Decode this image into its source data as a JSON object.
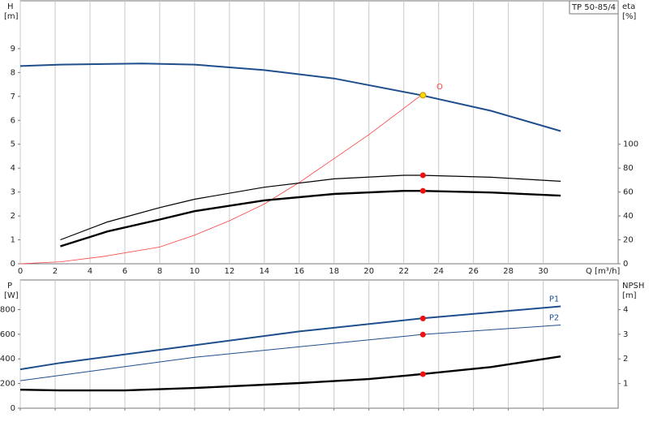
{
  "chart_data": [
    {
      "type": "line",
      "title": "TP 50-85/4",
      "ylabel": "H",
      "yunit": "[m]",
      "y2label": "eta",
      "y2unit": "[%]",
      "xlabel": "Q [m³/h]",
      "xlim": [
        0,
        34.3
      ],
      "xticks": [
        0,
        2,
        4,
        6,
        8,
        10,
        12,
        14,
        16,
        18,
        20,
        22,
        24,
        26,
        28,
        30
      ],
      "ylim": [
        0,
        11
      ],
      "yticks": [
        0,
        1,
        2,
        3,
        4,
        5,
        6,
        7,
        8,
        9
      ],
      "y2lim": [
        0,
        220
      ],
      "y2ticks": [
        0,
        20,
        40,
        60,
        80,
        100
      ],
      "grid": "x",
      "series": [
        {
          "color": "#1f4e8c",
          "linewidth": 2,
          "axis": "y",
          "x": [
            0,
            2.3,
            7,
            10,
            14,
            18,
            23,
            27,
            31
          ],
          "values": [
            8.27,
            8.33,
            8.38,
            8.33,
            8.1,
            7.75,
            7.05,
            6.4,
            5.55
          ]
        },
        {
          "color": "#ff4040",
          "linewidth": 0.8,
          "axis": "y",
          "x": [
            0,
            2.3,
            4.7,
            8,
            10,
            12,
            14,
            16,
            18,
            20,
            23
          ],
          "values": [
            0,
            0.08,
            0.3,
            0.7,
            1.2,
            1.8,
            2.5,
            3.4,
            4.4,
            5.4,
            7.05
          ]
        },
        {
          "color": "#000000",
          "linewidth": 1.2,
          "axis": "y2",
          "x": [
            2.3,
            5,
            8,
            10,
            14,
            18,
            22,
            23,
            27,
            31
          ],
          "values": [
            20,
            35,
            47,
            54,
            64,
            71,
            74,
            74,
            72.4,
            69
          ]
        },
        {
          "color": "#000000",
          "linewidth": 2.4,
          "axis": "y2",
          "x": [
            2.3,
            5,
            8,
            10,
            14,
            18,
            22,
            23,
            27,
            31
          ],
          "values": [
            14.6,
            27,
            37,
            44,
            53,
            58.4,
            61,
            61,
            59.6,
            57
          ]
        }
      ],
      "points": [
        {
          "x": 23.1,
          "y": 7.05,
          "axis": "y",
          "color": "#ffd700"
        },
        {
          "x": 23.1,
          "y": 74,
          "axis": "y2",
          "color": "#ee1111"
        },
        {
          "x": 23.1,
          "y": 61,
          "axis": "y2",
          "color": "#ee1111"
        }
      ],
      "annotations": [
        {
          "text": "O",
          "x": 23.5,
          "y": 7.4,
          "color": "#ff4040"
        }
      ]
    },
    {
      "type": "line",
      "ylabel": "P",
      "yunit": "[W]",
      "y2label": "NPSH",
      "y2unit": "[m]",
      "xlim": [
        0,
        34.3
      ],
      "xticks": [
        0,
        2,
        4,
        6,
        8,
        10,
        12,
        14,
        16,
        18,
        20,
        22,
        24,
        26,
        28,
        30
      ],
      "ylim": [
        0,
        1040
      ],
      "yticks": [
        0,
        200,
        400,
        600,
        800
      ],
      "y2lim": [
        0,
        5.2
      ],
      "y2ticks": [
        1,
        2,
        3,
        4
      ],
      "grid": "x",
      "series": [
        {
          "name": "P1",
          "color": "#1f4e8c",
          "linewidth": 2,
          "axis": "y",
          "x": [
            0,
            2.3,
            10,
            16,
            23,
            31
          ],
          "values": [
            315,
            367,
            511,
            623,
            728,
            826
          ]
        },
        {
          "name": "P2",
          "color": "#1f4e8c",
          "linewidth": 1,
          "axis": "y",
          "x": [
            0,
            10,
            23,
            31
          ],
          "values": [
            223,
            413,
            597,
            675
          ]
        },
        {
          "color": "#000000",
          "linewidth": 2.4,
          "axis": "y2",
          "x": [
            0,
            2.3,
            6,
            10,
            16,
            20,
            23,
            27,
            31
          ],
          "values": [
            0.75,
            0.72,
            0.72,
            0.82,
            1.02,
            1.18,
            1.38,
            1.67,
            2.1
          ]
        }
      ],
      "points": [
        {
          "x": 23.1,
          "y": 728,
          "axis": "y",
          "color": "#ee1111"
        },
        {
          "x": 23.1,
          "y": 597,
          "axis": "y",
          "color": "#ee1111"
        },
        {
          "x": 23.1,
          "y": 1.38,
          "axis": "y2",
          "color": "#ee1111"
        }
      ]
    }
  ]
}
